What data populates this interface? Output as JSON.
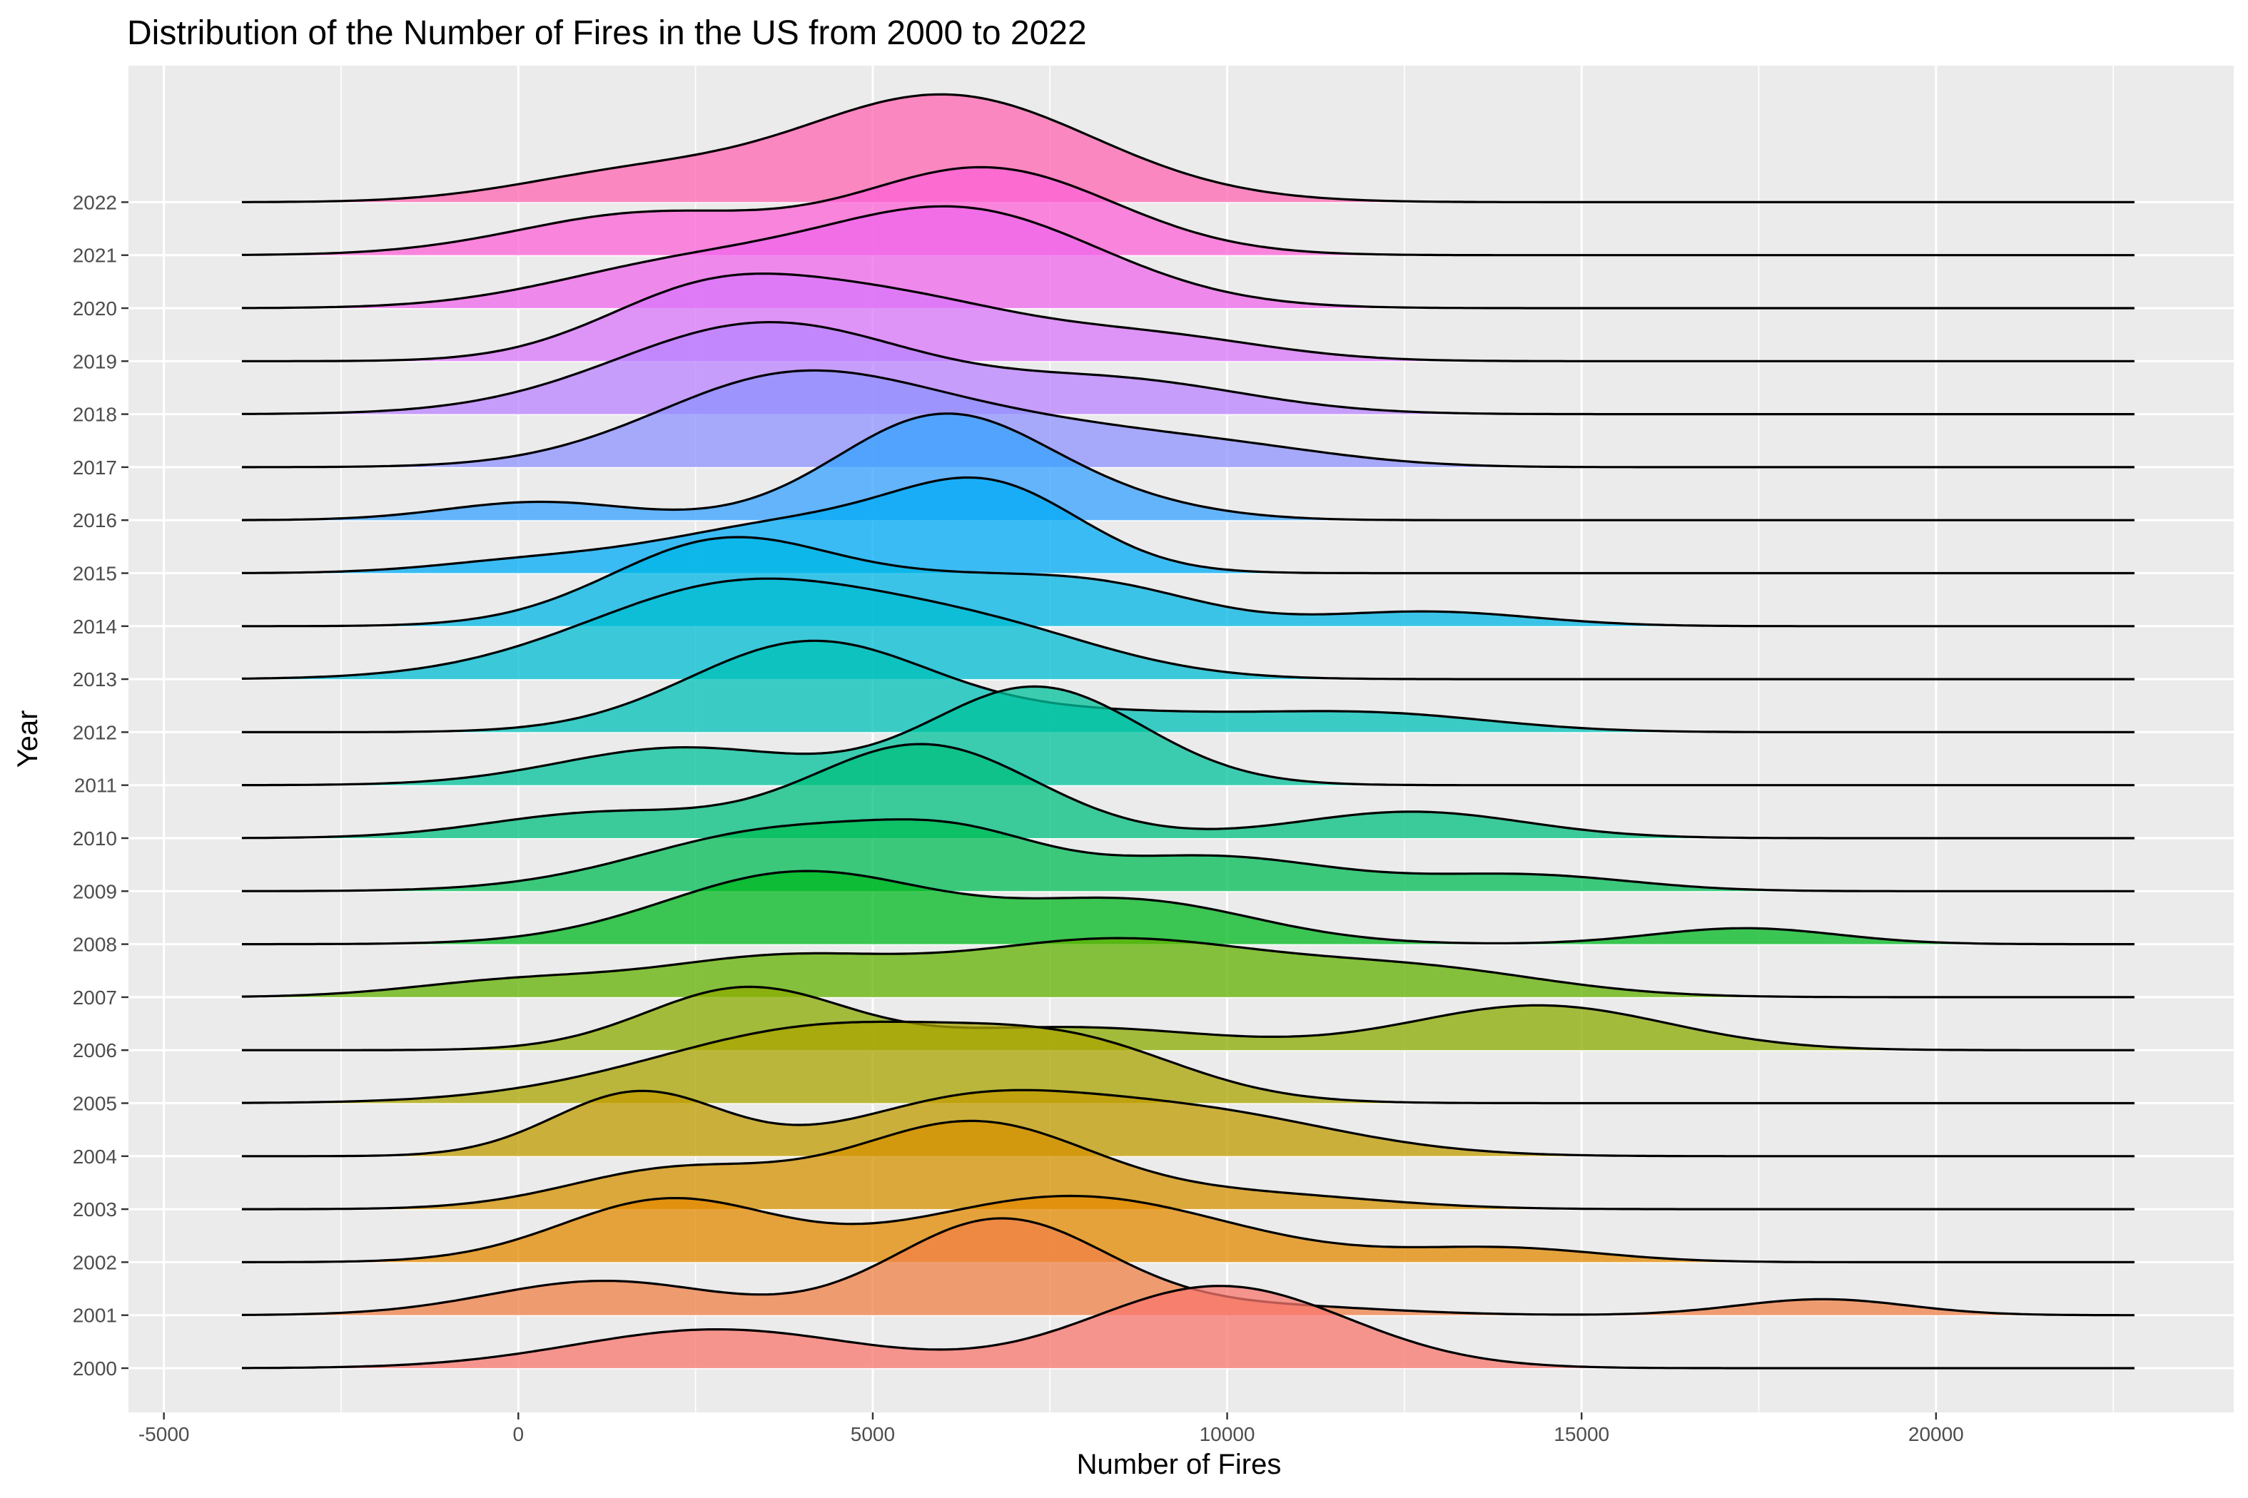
{
  "chart_data": {
    "type": "ridgeline",
    "title": "Distribution of the Number of Fires in the US from 2000 to 2022",
    "xlabel": "Number of Fires",
    "ylabel": "Year",
    "xlim": [
      -5500,
      24200
    ],
    "x_ticks": [
      -5000,
      0,
      5000,
      10000,
      15000,
      20000
    ],
    "x_tick_labels": [
      "-5000",
      "0",
      "5000",
      "10000",
      "15000",
      "20000"
    ],
    "density_range": [
      -3900,
      22800
    ],
    "grid": true,
    "legend": "none",
    "series": [
      {
        "name": "2000",
        "color": "#F8766D",
        "peaks": [
          {
            "x": 2800,
            "sd": 2000,
            "h": 0.85
          },
          {
            "x": 9900,
            "sd": 1800,
            "h": 1.8
          }
        ]
      },
      {
        "name": "2001",
        "color": "#EF8047",
        "peaks": [
          {
            "x": 1200,
            "sd": 1600,
            "h": 0.75
          },
          {
            "x": 6800,
            "sd": 1500,
            "h": 2.1
          },
          {
            "x": 10500,
            "sd": 1700,
            "h": 0.2
          },
          {
            "x": 18400,
            "sd": 1200,
            "h": 0.35
          }
        ]
      },
      {
        "name": "2002",
        "color": "#E38900",
        "peaks": [
          {
            "x": 2100,
            "sd": 1500,
            "h": 1.35
          },
          {
            "x": 7800,
            "sd": 2200,
            "h": 1.45
          },
          {
            "x": 13900,
            "sd": 1400,
            "h": 0.3
          }
        ]
      },
      {
        "name": "2003",
        "color": "#D49200",
        "peaks": [
          {
            "x": 2200,
            "sd": 1500,
            "h": 0.85
          },
          {
            "x": 6400,
            "sd": 1700,
            "h": 1.9
          },
          {
            "x": 10500,
            "sd": 1700,
            "h": 0.3
          }
        ]
      },
      {
        "name": "2004",
        "color": "#C09B00",
        "peaks": [
          {
            "x": 1700,
            "sd": 1200,
            "h": 1.4
          },
          {
            "x": 6300,
            "sd": 1700,
            "h": 1.1
          },
          {
            "x": 9500,
            "sd": 2000,
            "h": 0.95
          }
        ]
      },
      {
        "name": "2005",
        "color": "#A9A400",
        "peaks": [
          {
            "x": 4500,
            "sd": 2500,
            "h": 1.7
          },
          {
            "x": 8000,
            "sd": 1500,
            "h": 0.85
          }
        ]
      },
      {
        "name": "2006",
        "color": "#8BAB00",
        "peaks": [
          {
            "x": 3200,
            "sd": 1400,
            "h": 1.35
          },
          {
            "x": 7800,
            "sd": 2000,
            "h": 0.5
          },
          {
            "x": 14400,
            "sd": 1800,
            "h": 0.98
          }
        ]
      },
      {
        "name": "2007",
        "color": "#61B100",
        "peaks": [
          {
            "x": 0,
            "sd": 1500,
            "h": 0.35
          },
          {
            "x": 3600,
            "sd": 1700,
            "h": 0.8
          },
          {
            "x": 8400,
            "sd": 2200,
            "h": 1.25
          },
          {
            "x": 12800,
            "sd": 1800,
            "h": 0.55
          }
        ]
      },
      {
        "name": "2008",
        "color": "#00B81F",
        "peaks": [
          {
            "x": 4000,
            "sd": 1900,
            "h": 1.58
          },
          {
            "x": 8700,
            "sd": 1700,
            "h": 0.92
          },
          {
            "x": 17300,
            "sd": 1300,
            "h": 0.35
          }
        ]
      },
      {
        "name": "2009",
        "color": "#00BC56",
        "peaks": [
          {
            "x": 3800,
            "sd": 2000,
            "h": 1.35
          },
          {
            "x": 6300,
            "sd": 1200,
            "h": 0.75
          },
          {
            "x": 9800,
            "sd": 1700,
            "h": 0.75
          },
          {
            "x": 14200,
            "sd": 1500,
            "h": 0.35
          }
        ]
      },
      {
        "name": "2010",
        "color": "#00BF7D",
        "peaks": [
          {
            "x": 1200,
            "sd": 1600,
            "h": 0.55
          },
          {
            "x": 5700,
            "sd": 1600,
            "h": 2.05
          },
          {
            "x": 12600,
            "sd": 1600,
            "h": 0.58
          }
        ]
      },
      {
        "name": "2011",
        "color": "#00C19C",
        "peaks": [
          {
            "x": 2300,
            "sd": 1700,
            "h": 0.82
          },
          {
            "x": 7300,
            "sd": 1500,
            "h": 2.15
          }
        ]
      },
      {
        "name": "2012",
        "color": "#00C0B8",
        "peaks": [
          {
            "x": 4100,
            "sd": 1700,
            "h": 1.95
          },
          {
            "x": 8200,
            "sd": 2000,
            "h": 0.4
          },
          {
            "x": 12100,
            "sd": 1700,
            "h": 0.38
          }
        ]
      },
      {
        "name": "2013",
        "color": "#00BCD1",
        "peaks": [
          {
            "x": 3200,
            "sd": 2200,
            "h": 2.1
          },
          {
            "x": 6800,
            "sd": 1700,
            "h": 0.8
          }
        ]
      },
      {
        "name": "2014",
        "color": "#00B5E6",
        "peaks": [
          {
            "x": 2900,
            "sd": 1600,
            "h": 1.85
          },
          {
            "x": 6300,
            "sd": 1600,
            "h": 0.85
          },
          {
            "x": 8500,
            "sd": 1300,
            "h": 0.6
          },
          {
            "x": 12800,
            "sd": 1500,
            "h": 0.32
          }
        ]
      },
      {
        "name": "2015",
        "color": "#00ABF5",
        "peaks": [
          {
            "x": 4000,
            "sd": 2000,
            "h": 1.1
          },
          {
            "x": 6700,
            "sd": 1300,
            "h": 1.6
          },
          {
            "x": 0,
            "sd": 1300,
            "h": 0.2
          }
        ]
      },
      {
        "name": "2016",
        "color": "#35A2FF",
        "peaks": [
          {
            "x": 300,
            "sd": 1300,
            "h": 0.4
          },
          {
            "x": 6000,
            "sd": 1500,
            "h": 2.3
          },
          {
            "x": 8600,
            "sd": 1300,
            "h": 0.25
          }
        ]
      },
      {
        "name": "2017",
        "color": "#8F91FF",
        "peaks": [
          {
            "x": 3800,
            "sd": 1900,
            "h": 1.9
          },
          {
            "x": 7200,
            "sd": 2000,
            "h": 0.8
          },
          {
            "x": 10200,
            "sd": 1600,
            "h": 0.3
          }
        ]
      },
      {
        "name": "2018",
        "color": "#BA83FF",
        "peaks": [
          {
            "x": 3500,
            "sd": 2100,
            "h": 2.0
          },
          {
            "x": 8500,
            "sd": 1800,
            "h": 0.7
          }
        ]
      },
      {
        "name": "2019",
        "color": "#DA75F9",
        "peaks": [
          {
            "x": 2600,
            "sd": 1500,
            "h": 1.35
          },
          {
            "x": 5300,
            "sd": 1800,
            "h": 1.3
          },
          {
            "x": 9000,
            "sd": 1600,
            "h": 0.5
          }
        ]
      },
      {
        "name": "2020",
        "color": "#EF67EB",
        "peaks": [
          {
            "x": 2200,
            "sd": 1800,
            "h": 0.85
          },
          {
            "x": 6200,
            "sd": 2000,
            "h": 2.15
          }
        ]
      },
      {
        "name": "2021",
        "color": "#FC61D5",
        "peaks": [
          {
            "x": 1800,
            "sd": 1800,
            "h": 0.9
          },
          {
            "x": 6600,
            "sd": 1800,
            "h": 1.9
          }
        ]
      },
      {
        "name": "2022",
        "color": "#FF66B2",
        "peaks": [
          {
            "x": 1500,
            "sd": 1600,
            "h": 0.55
          },
          {
            "x": 6000,
            "sd": 2100,
            "h": 2.35
          }
        ]
      }
    ]
  }
}
